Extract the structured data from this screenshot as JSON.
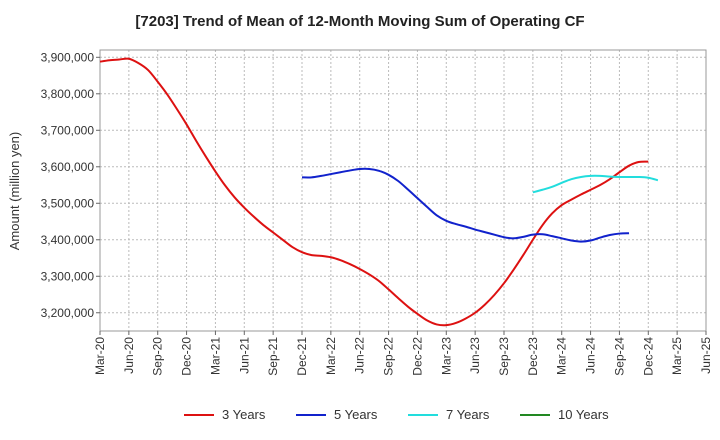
{
  "chart_data": {
    "type": "line",
    "title": "[7203]  Trend of Mean of 12-Month Moving Sum of Operating CF",
    "xlabel": "",
    "ylabel": "Amount (million yen)",
    "ylim": [
      3150000,
      3920000
    ],
    "yticks": [
      3200000,
      3300000,
      3400000,
      3500000,
      3600000,
      3700000,
      3800000,
      3900000
    ],
    "ytick_labels": [
      "3,200,000",
      "3,300,000",
      "3,400,000",
      "3,500,000",
      "3,600,000",
      "3,700,000",
      "3,800,000",
      "3,900,000"
    ],
    "xtick_labels": [
      "Mar-20",
      "Jun-20",
      "Sep-20",
      "Dec-20",
      "Mar-21",
      "Jun-21",
      "Sep-21",
      "Dec-21",
      "Mar-22",
      "Jun-22",
      "Sep-22",
      "Dec-22",
      "Mar-23",
      "Jun-23",
      "Sep-23",
      "Dec-23",
      "Mar-24",
      "Jun-24",
      "Sep-24",
      "Dec-24",
      "Mar-25",
      "Jun-25"
    ],
    "grid": true,
    "legend_position": "bottom",
    "x_start": "Mar-20",
    "x_unit": "months",
    "series": [
      {
        "name": "3 Years",
        "color": "#dd1111",
        "start_month": 0,
        "values": [
          3888000,
          3892000,
          3894000,
          3896000,
          3884000,
          3865000,
          3833000,
          3798000,
          3758000,
          3716000,
          3671000,
          3628000,
          3587000,
          3549000,
          3516000,
          3488000,
          3463000,
          3440000,
          3420000,
          3400000,
          3380000,
          3366000,
          3358000,
          3356000,
          3352000,
          3344000,
          3333000,
          3320000,
          3305000,
          3287000,
          3264000,
          3240000,
          3217000,
          3197000,
          3179000,
          3168000,
          3166000,
          3172000,
          3184000,
          3200000,
          3222000,
          3249000,
          3281000,
          3318000,
          3358000,
          3400000,
          3440000,
          3472000,
          3495000,
          3510000,
          3524000,
          3537000,
          3550000,
          3566000,
          3585000,
          3603000,
          3613000,
          3614000
        ]
      },
      {
        "name": "5 Years",
        "color": "#1122cc",
        "start_month": 21,
        "values": [
          3571000,
          3571000,
          3575000,
          3580000,
          3585000,
          3590000,
          3594000,
          3594000,
          3589000,
          3578000,
          3561000,
          3538000,
          3514000,
          3490000,
          3467000,
          3452000,
          3443000,
          3436000,
          3428000,
          3421000,
          3414000,
          3407000,
          3404000,
          3408000,
          3414000,
          3415000,
          3410000,
          3404000,
          3398000,
          3395000,
          3398000,
          3406000,
          3413000,
          3417000,
          3418000
        ]
      },
      {
        "name": "7 Years",
        "color": "#22dddd",
        "start_month": 45,
        "values": [
          3530000,
          3537000,
          3545000,
          3556000,
          3566000,
          3572000,
          3575000,
          3575000,
          3573000,
          3572000,
          3572000,
          3572000,
          3570000,
          3563000
        ]
      },
      {
        "name": "10 Years",
        "color": "#228822",
        "start_month": 0,
        "values": []
      }
    ]
  }
}
